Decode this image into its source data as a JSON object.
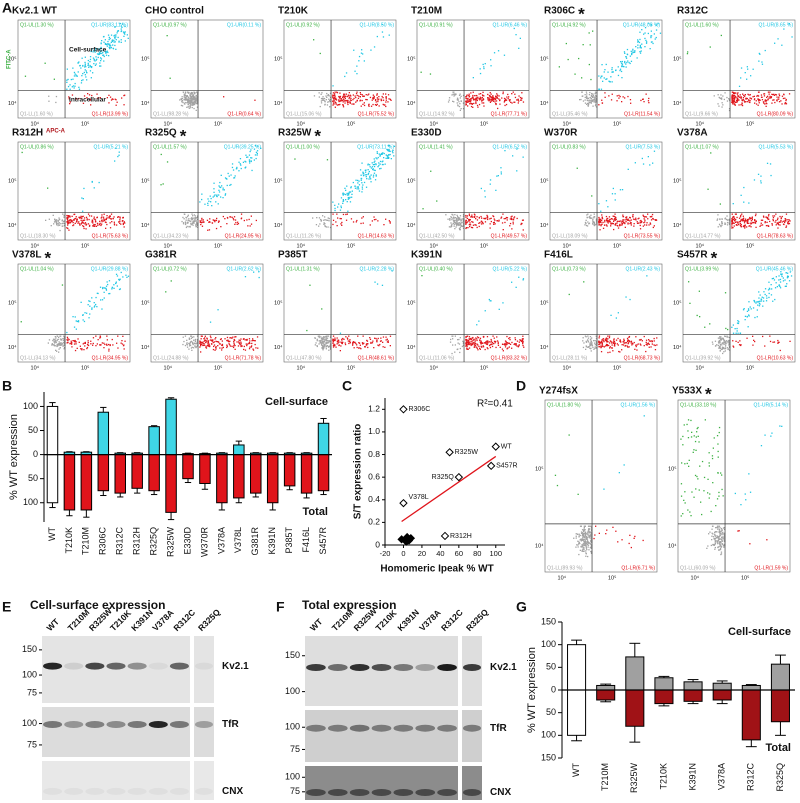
{
  "panel_labels": [
    "A",
    "B",
    "C",
    "D",
    "E",
    "F",
    "G"
  ],
  "flow": {
    "colors": [
      "#3cb043",
      "#22c7e4",
      "#a3a3a3",
      "#e0161c"
    ],
    "x_label": "APC-A",
    "y_label": "FITC-A",
    "surface_label": "Cell-surface",
    "intracellular_label": "Intracellular",
    "ticks": [
      "10⁴",
      "10⁵"
    ],
    "plots": [
      {
        "title": "Kv2.1 WT",
        "quadrants": [
          {
            "value": 1.3,
            "label": "Q1-UL(1.30 %)"
          },
          {
            "value": 83.11,
            "label": "Q1-UR(83.11 %)"
          },
          {
            "value": 1.6,
            "label": "Q1-LL(1.60 %)"
          },
          {
            "value": 13.99,
            "label": "Q1-LR(13.99 %)"
          }
        ]
      },
      {
        "title": "CHO control",
        "quadrants": [
          {
            "value": 0.97,
            "label": "Q1-UL(0.97 %)"
          },
          {
            "value": 0.11,
            "label": "Q1-UR(0.11 %)"
          },
          {
            "value": 98.28,
            "label": "Q1-LL(98.28 %)"
          },
          {
            "value": 0.64,
            "label": "Q1-LR(0.64 %)"
          }
        ]
      },
      {
        "title": "T210K",
        "quadrants": [
          {
            "value": 0.92,
            "label": "Q1-UL(0.92 %)"
          },
          {
            "value": 8.5,
            "label": "Q1-UR(8.50 %)"
          },
          {
            "value": 15.06,
            "label": "Q1-LL(15.06 %)"
          },
          {
            "value": 75.52,
            "label": "Q1-LR(75.52 %)"
          }
        ]
      },
      {
        "title": "T210M",
        "quadrants": [
          {
            "value": 0.91,
            "label": "Q1-UL(0.91 %)"
          },
          {
            "value": 6.46,
            "label": "Q1-UR(6.46 %)"
          },
          {
            "value": 14.92,
            "label": "Q1-LL(14.92 %)"
          },
          {
            "value": 77.71,
            "label": "Q1-LR(77.71 %)"
          }
        ]
      },
      {
        "title": "R306C",
        "marker": "*",
        "quadrants": [
          {
            "value": 4.92,
            "label": "Q1-UL(4.92 %)"
          },
          {
            "value": 48.08,
            "label": "Q1-UR(48.08 %)"
          },
          {
            "value": 35.46,
            "label": "Q1-LL(35.46 %)"
          },
          {
            "value": 11.54,
            "label": "Q1-LR(11.54 %)"
          }
        ]
      },
      {
        "title": "R312C",
        "quadrants": [
          {
            "value": 1.6,
            "label": "Q1-UL(1.60 %)"
          },
          {
            "value": 8.65,
            "label": "Q1-UR(8.65 %)"
          },
          {
            "value": 9.66,
            "label": "Q1-LL(9.66 %)"
          },
          {
            "value": 80.09,
            "label": "Q1-LR(80.09 %)"
          }
        ]
      },
      {
        "title": "R312H",
        "quadrants": [
          {
            "value": 0.86,
            "label": "Q1-UL(0.86 %)"
          },
          {
            "value": 5.21,
            "label": "Q1-UR(5.21 %)"
          },
          {
            "value": 18.3,
            "label": "Q1-LL(18.30 %)"
          },
          {
            "value": 75.63,
            "label": "Q1-LR(75.63 %)"
          }
        ]
      },
      {
        "title": "R325Q",
        "marker": "*",
        "quadrants": [
          {
            "value": 1.57,
            "label": "Q1-UL(1.57 %)"
          },
          {
            "value": 39.25,
            "label": "Q1-UR(39.25 %)"
          },
          {
            "value": 34.23,
            "label": "Q1-LL(34.23 %)"
          },
          {
            "value": 24.95,
            "label": "Q1-LR(24.95 %)"
          }
        ]
      },
      {
        "title": "R325W",
        "marker": "*",
        "quadrants": [
          {
            "value": 1.0,
            "label": "Q1-UL(1.00 %)"
          },
          {
            "value": 73.11,
            "label": "Q1-UR(73.11 %)"
          },
          {
            "value": 11.26,
            "label": "Q1-LL(11.26 %)"
          },
          {
            "value": 14.63,
            "label": "Q1-LR(14.63 %)"
          }
        ]
      },
      {
        "title": "E330D",
        "quadrants": [
          {
            "value": 1.41,
            "label": "Q1-UL(1.41 %)"
          },
          {
            "value": 6.52,
            "label": "Q1-UR(6.52 %)"
          },
          {
            "value": 42.5,
            "label": "Q1-LL(42.50 %)"
          },
          {
            "value": 49.57,
            "label": "Q1-LR(49.57 %)"
          }
        ]
      },
      {
        "title": "W370R",
        "quadrants": [
          {
            "value": 0.83,
            "label": "Q1-UL(0.83 %)"
          },
          {
            "value": 7.53,
            "label": "Q1-UR(7.53 %)"
          },
          {
            "value": 18.09,
            "label": "Q1-LL(18.09 %)"
          },
          {
            "value": 73.55,
            "label": "Q1-LR(73.55 %)"
          }
        ]
      },
      {
        "title": "V378A",
        "quadrants": [
          {
            "value": 1.07,
            "label": "Q1-UL(1.07 %)"
          },
          {
            "value": 5.53,
            "label": "Q1-UR(5.53 %)"
          },
          {
            "value": 14.77,
            "label": "Q1-LL(14.77 %)"
          },
          {
            "value": 78.63,
            "label": "Q1-LR(78.63 %)"
          }
        ]
      },
      {
        "title": "V378L",
        "marker": "*",
        "quadrants": [
          {
            "value": 1.04,
            "label": "Q1-UL(1.04 %)"
          },
          {
            "value": 29.88,
            "label": "Q1-UR(29.88 %)"
          },
          {
            "value": 34.13,
            "label": "Q1-LL(34.13 %)"
          },
          {
            "value": 34.95,
            "label": "Q1-LR(34.95 %)"
          }
        ]
      },
      {
        "title": "G381R",
        "quadrants": [
          {
            "value": 0.72,
            "label": "Q1-UL(0.72 %)"
          },
          {
            "value": 2.62,
            "label": "Q1-UR(2.62 %)"
          },
          {
            "value": 24.88,
            "label": "Q1-LL(24.88 %)"
          },
          {
            "value": 71.78,
            "label": "Q1-LR(71.78 %)"
          }
        ]
      },
      {
        "title": "P385T",
        "quadrants": [
          {
            "value": 1.31,
            "label": "Q1-UL(1.31 %)"
          },
          {
            "value": 2.28,
            "label": "Q1-UR(2.28 %)"
          },
          {
            "value": 47.8,
            "label": "Q1-LL(47.80 %)"
          },
          {
            "value": 48.61,
            "label": "Q1-LR(48.61 %)"
          }
        ]
      },
      {
        "title": "K391N",
        "quadrants": [
          {
            "value": 0.4,
            "label": "Q1-UL(0.40 %)"
          },
          {
            "value": 5.22,
            "label": "Q1-UR(5.22 %)"
          },
          {
            "value": 11.06,
            "label": "Q1-LL(11.06 %)"
          },
          {
            "value": 83.32,
            "label": "Q1-LR(83.32 %)"
          }
        ]
      },
      {
        "title": "F416L",
        "quadrants": [
          {
            "value": 0.73,
            "label": "Q1-UL(0.73 %)"
          },
          {
            "value": 2.43,
            "label": "Q1-UR(2.43 %)"
          },
          {
            "value": 28.11,
            "label": "Q1-LL(28.11 %)"
          },
          {
            "value": 68.73,
            "label": "Q1-LR(68.73 %)"
          }
        ]
      },
      {
        "title": "S457R",
        "marker": "*",
        "quadrants": [
          {
            "value": 3.99,
            "label": "Q1-UL(3.99 %)"
          },
          {
            "value": 45.46,
            "label": "Q1-UR(45.46 %)"
          },
          {
            "value": 39.92,
            "label": "Q1-LL(39.92 %)"
          },
          {
            "value": 10.63,
            "label": "Q1-LR(10.63 %)"
          }
        ]
      }
    ],
    "d_plots": [
      {
        "title": "Y274fsX",
        "quadrants": [
          {
            "value": 1.8,
            "label": "Q1-UL(1.80 %)"
          },
          {
            "value": 1.56,
            "label": "Q1-UR(1.56 %)"
          },
          {
            "value": 89.93,
            "label": "Q1-LL(89.93 %)"
          },
          {
            "value": 6.71,
            "label": "Q1-LR(6.71 %)"
          }
        ]
      },
      {
        "title": "Y533X",
        "marker": "*",
        "quadrants": [
          {
            "value": 33.18,
            "label": "Q1-UL(33.18 %)"
          },
          {
            "value": 5.14,
            "label": "Q1-UR(5.14 %)"
          },
          {
            "value": 60.09,
            "label": "Q1-LL(60.09 %)"
          },
          {
            "value": 1.59,
            "label": "Q1-LR(1.59 %)"
          }
        ]
      }
    ]
  },
  "chart_data": [
    {
      "type": "bar",
      "y_label": "% WT expression",
      "first_color": "#ffffff",
      "categories": [
        "WT",
        "T210K",
        "T210M",
        "R306C",
        "R312C",
        "R312H",
        "R325Q",
        "R325W",
        "E330D",
        "W370R",
        "V378A",
        "V378L",
        "G381R",
        "K391N",
        "P385T",
        "F416L",
        "S457R"
      ],
      "series": [
        {
          "name": "Cell-surface",
          "color": "#3fd6e6",
          "values": [
            100,
            5,
            5,
            88,
            3,
            3,
            58,
            115,
            2,
            2,
            3,
            20,
            3,
            3,
            3,
            3,
            65
          ],
          "errors": [
            8,
            1,
            1,
            10,
            1,
            1,
            2,
            3,
            1,
            1,
            1,
            8,
            1,
            1,
            1,
            1,
            10
          ]
        },
        {
          "name": "Total",
          "color": "#e0141b",
          "values": [
            -100,
            -115,
            -115,
            -75,
            -80,
            -70,
            -75,
            -120,
            -50,
            -60,
            -100,
            -90,
            -80,
            -100,
            -65,
            -80,
            -75
          ],
          "errors": [
            10,
            12,
            15,
            10,
            8,
            10,
            8,
            15,
            8,
            12,
            15,
            10,
            8,
            15,
            8,
            10,
            8
          ]
        }
      ],
      "ylim": [
        -140,
        130
      ],
      "yticks": [
        {
          "value": -100,
          "label": "100"
        },
        {
          "value": -50,
          "label": "50"
        },
        0,
        50,
        100
      ]
    },
    {
      "type": "scatter",
      "x_label": "Homomeric Ipeak % WT",
      "y_label": "S/T expression ratio",
      "annotation": "R²=0.41",
      "color": "#000000",
      "line_color": "#e0141b",
      "x": [
        0,
        50,
        100,
        60,
        95,
        0,
        45,
        2,
        4,
        6,
        8,
        -2,
        3
      ],
      "values": [
        1.2,
        0.82,
        0.87,
        0.6,
        0.7,
        0.37,
        0.08,
        0.05,
        0.07,
        0.04,
        0.06,
        0.05,
        0.03
      ],
      "point_labels": [
        "R306C",
        "R325W",
        "WT",
        "R325Q",
        "S457R",
        "V378L",
        "R312H",
        null,
        null,
        null,
        null,
        null,
        null
      ],
      "xlim": [
        -20,
        110
      ],
      "xticks": [
        -20,
        0,
        20,
        40,
        60,
        80,
        100
      ],
      "ylim": [
        0,
        1.3
      ],
      "yticks": [
        0,
        0.2,
        0.4,
        0.6,
        0.8,
        {
          "value": 1,
          "label": "1.0"
        },
        1.2
      ]
    },
    {
      "type": "bar",
      "y_label": "% WT expression",
      "first_color": "#ffffff",
      "categories": [
        "WT",
        "T210M",
        "R325W",
        "T210K",
        "K391N",
        "V378A",
        "R312C",
        "R325Q"
      ],
      "series": [
        {
          "name": "Cell-surface",
          "color": "#a0a0a0",
          "values": [
            100,
            10,
            73,
            27,
            18,
            15,
            10,
            57
          ],
          "errors": [
            10,
            3,
            30,
            3,
            5,
            5,
            2,
            20
          ]
        },
        {
          "name": "Total",
          "color": "#a01216",
          "values": [
            -100,
            -22,
            -80,
            -30,
            -25,
            -22,
            -110,
            -70
          ],
          "errors": [
            12,
            4,
            35,
            5,
            5,
            8,
            15,
            30
          ]
        }
      ],
      "ylim": [
        -150,
        150
      ],
      "yticks": [
        {
          "value": -150,
          "label": "150"
        },
        {
          "value": -100,
          "label": "100"
        },
        {
          "value": -50,
          "label": "50"
        },
        0,
        50,
        100,
        150
      ]
    }
  ],
  "blots": [
    {
      "title": "Cell-surface expression",
      "lanes": [
        "WT",
        "T210M",
        "R325W",
        "T210K",
        "K391N",
        "V378A",
        "R312C",
        "R325Q"
      ],
      "rows": [
        {
          "protein": "Kv2.1",
          "markers": [
            150,
            100,
            75
          ]
        },
        {
          "protein": "TfR",
          "markers": [
            100,
            75
          ]
        },
        {
          "protein": "CNX",
          "markers": []
        }
      ]
    },
    {
      "title": "Total expression",
      "lanes": [
        "WT",
        "T210M",
        "R325W",
        "T210K",
        "K391N",
        "V378A",
        "R312C",
        "R325Q"
      ],
      "rows": [
        {
          "protein": "Kv2.1",
          "markers": [
            150,
            100
          ]
        },
        {
          "protein": "TfR",
          "markers": [
            100,
            75
          ]
        },
        {
          "protein": "CNX",
          "markers": [
            100,
            75
          ]
        }
      ]
    }
  ]
}
